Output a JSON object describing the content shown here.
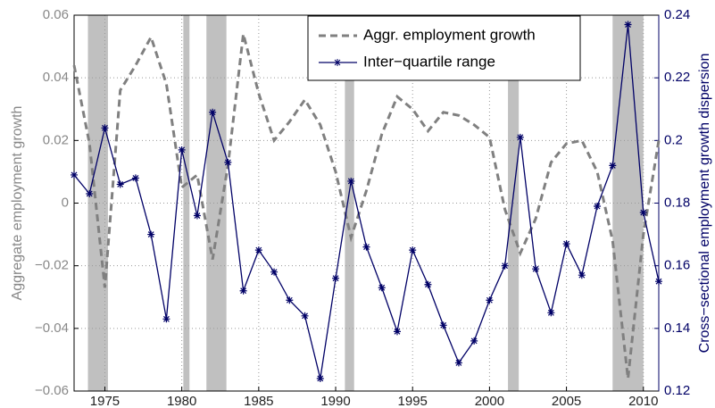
{
  "chart_data": {
    "type": "line",
    "x": [
      1973,
      1974,
      1975,
      1976,
      1977,
      1978,
      1979,
      1980,
      1981,
      1982,
      1983,
      1984,
      1985,
      1986,
      1987,
      1988,
      1989,
      1990,
      1991,
      1992,
      1993,
      1994,
      1995,
      1996,
      1997,
      1998,
      1999,
      2000,
      2001,
      2002,
      2003,
      2004,
      2005,
      2006,
      2007,
      2008,
      2009,
      2010,
      2011
    ],
    "series": [
      {
        "name": "Aggr. employment growth",
        "color": "#808080",
        "style": "dashed",
        "axis": "y",
        "values": [
          0.044,
          0.019,
          -0.027,
          0.036,
          0.044,
          0.053,
          0.038,
          0.005,
          0.009,
          -0.018,
          0.012,
          0.054,
          0.035,
          0.02,
          0.026,
          0.033,
          0.025,
          0.01,
          -0.011,
          0.004,
          0.022,
          0.034,
          0.03,
          0.023,
          0.029,
          0.028,
          0.025,
          0.021,
          -0.002,
          -0.016,
          -0.005,
          0.013,
          0.019,
          0.02,
          0.01,
          -0.012,
          -0.056,
          -0.01,
          0.02
        ]
      },
      {
        "name": "Inter−quartile range",
        "color": "#000066",
        "style": "solid-star",
        "axis": "y2",
        "values": [
          0.189,
          0.183,
          0.204,
          0.186,
          0.188,
          0.17,
          0.143,
          0.197,
          0.176,
          0.209,
          0.193,
          0.152,
          0.165,
          0.158,
          0.149,
          0.144,
          0.124,
          0.156,
          0.187,
          0.166,
          0.153,
          0.139,
          0.165,
          0.154,
          0.141,
          0.129,
          0.136,
          0.149,
          0.16,
          0.201,
          0.159,
          0.145,
          0.167,
          0.157,
          0.179,
          0.192,
          0.237,
          0.177,
          0.155
        ]
      }
    ],
    "shading": [
      [
        1973.9,
        1975.2
      ],
      [
        1980.1,
        1980.5
      ],
      [
        1981.6,
        1982.9
      ],
      [
        1990.6,
        1991.2
      ],
      [
        2001.2,
        2001.9
      ],
      [
        2008.0,
        2010.0
      ]
    ],
    "shading_color": "#c0c0c0",
    "xlim": [
      1973,
      2011
    ],
    "xticks": [
      1975,
      1980,
      1985,
      1990,
      1995,
      2000,
      2005,
      2010
    ],
    "ylim": [
      -0.06,
      0.06
    ],
    "yticks": [
      {
        "value": -0.06,
        "label": "−0.06"
      },
      {
        "value": -0.04,
        "label": "−0.04"
      },
      {
        "value": -0.02,
        "label": "−0.02"
      },
      0,
      0.02,
      0.04,
      0.06
    ],
    "y2lim": [
      0.12,
      0.24
    ],
    "y2ticks": [
      0.12,
      0.14,
      0.16,
      0.18,
      0.2,
      0.22,
      0.24
    ],
    "ylabel": "Aggregate employment growth",
    "y2label": "Cross−sectional employment growth dispersion",
    "grid": true,
    "legend": "upper right"
  }
}
